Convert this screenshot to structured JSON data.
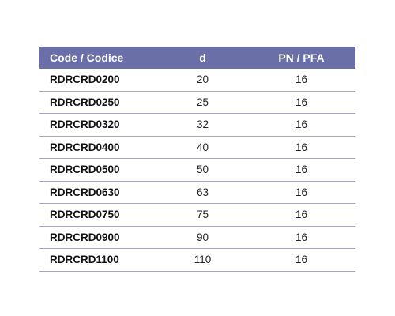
{
  "table": {
    "header": [
      "Code / Codice",
      "d",
      "PN / PFA"
    ],
    "rows": [
      [
        "RDRCRD0200",
        "20",
        "16"
      ],
      [
        "RDRCRD0250",
        "25",
        "16"
      ],
      [
        "RDRCRD0320",
        "32",
        "16"
      ],
      [
        "RDRCRD0400",
        "40",
        "16"
      ],
      [
        "RDRCRD0500",
        "50",
        "16"
      ],
      [
        "RDRCRD0630",
        "63",
        "16"
      ],
      [
        "RDRCRD0750",
        "75",
        "16"
      ],
      [
        "RDRCRD0900",
        "90",
        "16"
      ],
      [
        "RDRCRD1100",
        "110",
        "16"
      ]
    ]
  }
}
